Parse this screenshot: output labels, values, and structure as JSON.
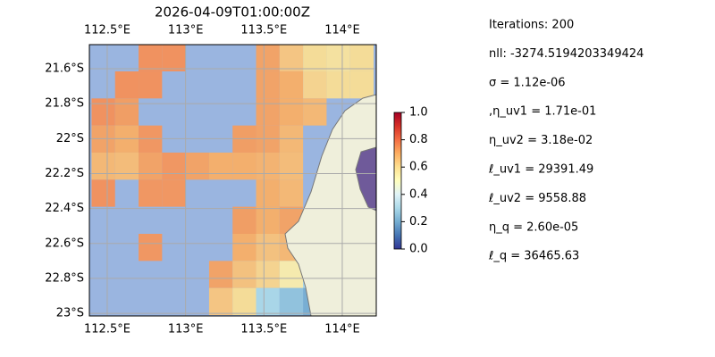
{
  "chart_data": {
    "type": "heatmap",
    "title": "2026-04-09T01:00:00Z",
    "colormap": "RdYlBu_r",
    "ocean_color": "#9ab5e0",
    "land_color": "#efefdb",
    "grid": true,
    "xlim": [
      112.386,
      114.217
    ],
    "ylim": [
      21.462,
      23.015
    ],
    "xticks": [
      {
        "value": 112.5,
        "label": "112.5°E"
      },
      {
        "value": 113,
        "label": "113°E"
      },
      {
        "value": 113.5,
        "label": "113.5°E"
      },
      {
        "value": 114,
        "label": "114°E"
      }
    ],
    "yticks": [
      {
        "value": 21.6,
        "label": "21.6°S"
      },
      {
        "value": 21.8,
        "label": "21.8°S"
      },
      {
        "value": 22,
        "label": "22°S"
      },
      {
        "value": 22.2,
        "label": "22.2°S"
      },
      {
        "value": 22.4,
        "label": "22.4°S"
      },
      {
        "value": 22.6,
        "label": "22.6°S"
      },
      {
        "value": 22.8,
        "label": "22.8°S"
      },
      {
        "value": 23,
        "label": "23°S"
      }
    ],
    "cell_lon": [
      112.4,
      112.55,
      112.7,
      112.85,
      113.0,
      113.15,
      113.3,
      113.45,
      113.6,
      113.75,
      113.9,
      114.05,
      114.2
    ],
    "cell_lat": [
      21.46,
      21.615,
      21.77,
      21.925,
      22.08,
      22.235,
      22.39,
      22.545,
      22.7,
      22.855,
      23.01
    ],
    "values": [
      [
        null,
        null,
        0.75,
        0.75,
        null,
        null,
        null,
        0.72,
        0.65,
        0.6,
        0.58,
        0.6
      ],
      [
        null,
        0.75,
        0.75,
        null,
        null,
        null,
        null,
        0.72,
        0.7,
        0.62,
        0.6,
        0.6
      ],
      [
        0.75,
        0.73,
        null,
        null,
        null,
        null,
        null,
        0.72,
        0.7,
        0.68,
        null,
        null
      ],
      [
        0.72,
        0.7,
        0.74,
        null,
        null,
        null,
        0.73,
        0.72,
        0.68,
        null,
        null,
        null
      ],
      [
        0.68,
        0.67,
        0.72,
        0.74,
        0.72,
        0.7,
        0.7,
        0.69,
        0.67,
        null,
        null,
        0.15
      ],
      [
        0.75,
        null,
        0.74,
        0.74,
        null,
        null,
        null,
        0.7,
        0.68,
        null,
        null,
        null
      ],
      [
        null,
        null,
        null,
        null,
        null,
        null,
        0.73,
        0.7,
        0.72,
        null,
        null,
        null
      ],
      [
        null,
        null,
        0.74,
        null,
        null,
        null,
        0.7,
        0.66,
        0.68,
        null,
        null,
        null
      ],
      [
        null,
        null,
        null,
        null,
        null,
        0.72,
        0.66,
        0.62,
        0.55,
        0.3,
        null,
        null
      ],
      [
        null,
        null,
        null,
        null,
        null,
        0.65,
        0.6,
        0.3,
        0.25,
        0.2,
        null,
        null
      ]
    ],
    "clim": [
      0,
      1
    ],
    "cticks": [
      {
        "value": 0,
        "label": "0.0"
      },
      0.2,
      0.4,
      0.6,
      0.8,
      {
        "value": 1,
        "label": "1.0"
      }
    ],
    "annotations": [
      "Iterations: 200",
      "nll: -3274.5194203349424",
      "σ = 1.12e-06",
      ",η_uv1 = 1.71e-01",
      "η_uv2 = 3.18e-02",
      "ℓ_uv1 = 29391.49",
      "ℓ_uv2 = 9558.88",
      "η_q = 2.60e-05",
      "ℓ_q = 36465.63"
    ]
  }
}
